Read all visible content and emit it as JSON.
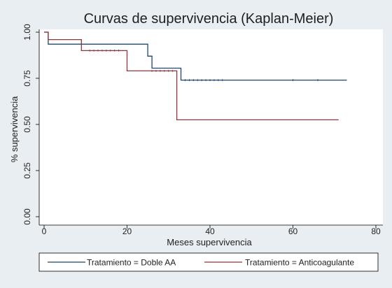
{
  "chart_data": {
    "type": "line",
    "title": "Curvas de supervivencia (Kaplan-Meier)",
    "xlabel": "Meses supervivencia",
    "ylabel": "% supervivencia",
    "xlim": [
      0,
      80
    ],
    "ylim": [
      0,
      1
    ],
    "x_ticks": [
      "0",
      "20",
      "40",
      "60",
      "80"
    ],
    "y_ticks": [
      "0.00",
      "0.25",
      "0.50",
      "0.75",
      "1.00"
    ],
    "grid": false,
    "legend_position": "bottom",
    "series": [
      {
        "name": "Tratamiento = Doble AA",
        "color": "#1a476f",
        "step_points": [
          [
            0,
            1.0
          ],
          [
            1,
            1.0
          ],
          [
            1,
            0.935
          ],
          [
            25,
            0.935
          ],
          [
            25,
            0.87
          ],
          [
            26,
            0.87
          ],
          [
            26,
            0.805
          ],
          [
            33,
            0.805
          ],
          [
            33,
            0.74
          ],
          [
            73,
            0.74
          ]
        ],
        "censor_x": [
          34,
          35,
          36,
          37,
          38,
          39,
          40,
          41,
          42,
          43,
          60,
          66
        ]
      },
      {
        "name": "Tratamiento = Anticoagulante",
        "color": "#90353b",
        "step_points": [
          [
            0,
            1.0
          ],
          [
            1,
            1.0
          ],
          [
            1,
            0.96
          ],
          [
            9,
            0.96
          ],
          [
            9,
            0.9
          ],
          [
            20,
            0.9
          ],
          [
            20,
            0.79
          ],
          [
            32,
            0.79
          ],
          [
            32,
            0.525
          ],
          [
            71,
            0.525
          ]
        ],
        "censor_x": [
          11,
          12,
          13,
          14,
          15,
          16,
          17,
          18,
          26,
          27,
          28,
          29,
          30,
          31
        ]
      }
    ]
  }
}
